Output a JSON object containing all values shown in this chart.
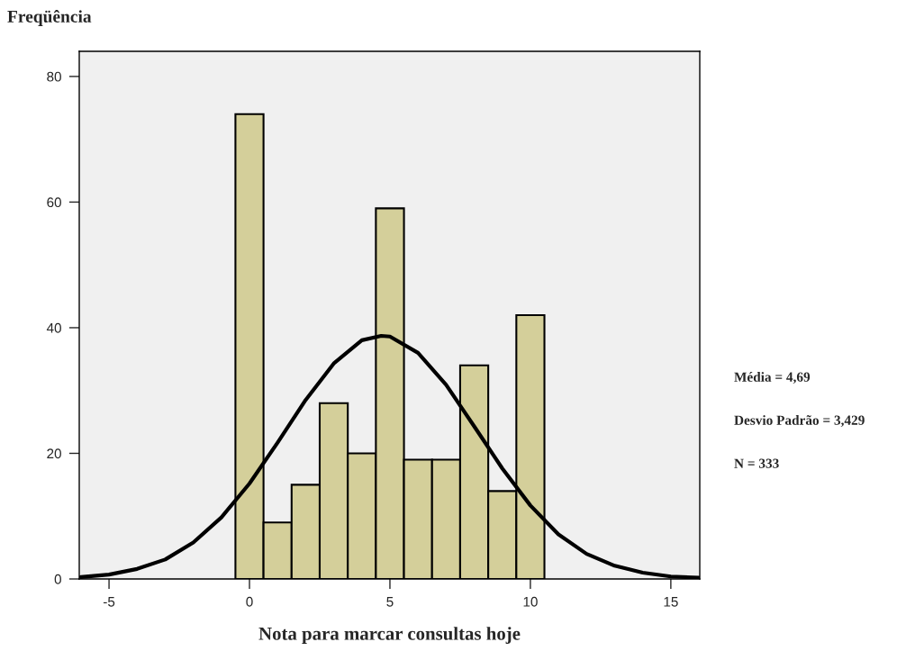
{
  "chart_data": {
    "type": "histogram",
    "ylabel": "Freqüência",
    "xlabel": "Nota para marcar consultas hoje",
    "bins": [
      -0.5,
      0.5,
      1.5,
      2.5,
      3.5,
      4.5,
      5.5,
      6.5,
      7.5,
      8.5,
      9.5,
      10.5
    ],
    "values": [
      74,
      9,
      15,
      28,
      20,
      59,
      19,
      19,
      34,
      14,
      42
    ],
    "color": "#d4cf9a",
    "series": [
      {
        "type": "line",
        "color": "#000000",
        "x": [
          -6,
          -5,
          -4,
          -3,
          -2,
          -1,
          0,
          1,
          2,
          3,
          4,
          4.69,
          5,
          6,
          7,
          8,
          9,
          10,
          11,
          12,
          13,
          14,
          15,
          16
        ],
        "values": [
          0.3,
          0.7,
          1.6,
          3.1,
          5.8,
          9.8,
          15.2,
          21.7,
          28.5,
          34.3,
          38.0,
          38.7,
          38.6,
          36.0,
          30.9,
          24.3,
          17.6,
          11.7,
          7.1,
          4.0,
          2.1,
          1.0,
          0.4,
          0.2
        ]
      }
    ],
    "xlim": [
      -6.06,
      16.03
    ],
    "ylim": [
      0,
      84
    ],
    "xticks": [
      -5,
      0,
      5,
      10,
      15
    ],
    "yticks": [
      0,
      20,
      40,
      60,
      80
    ],
    "grid": false,
    "legend": false,
    "annotations": [
      "Média = 4,69",
      "Desvio Padrão = 3,429",
      "N = 333"
    ]
  }
}
